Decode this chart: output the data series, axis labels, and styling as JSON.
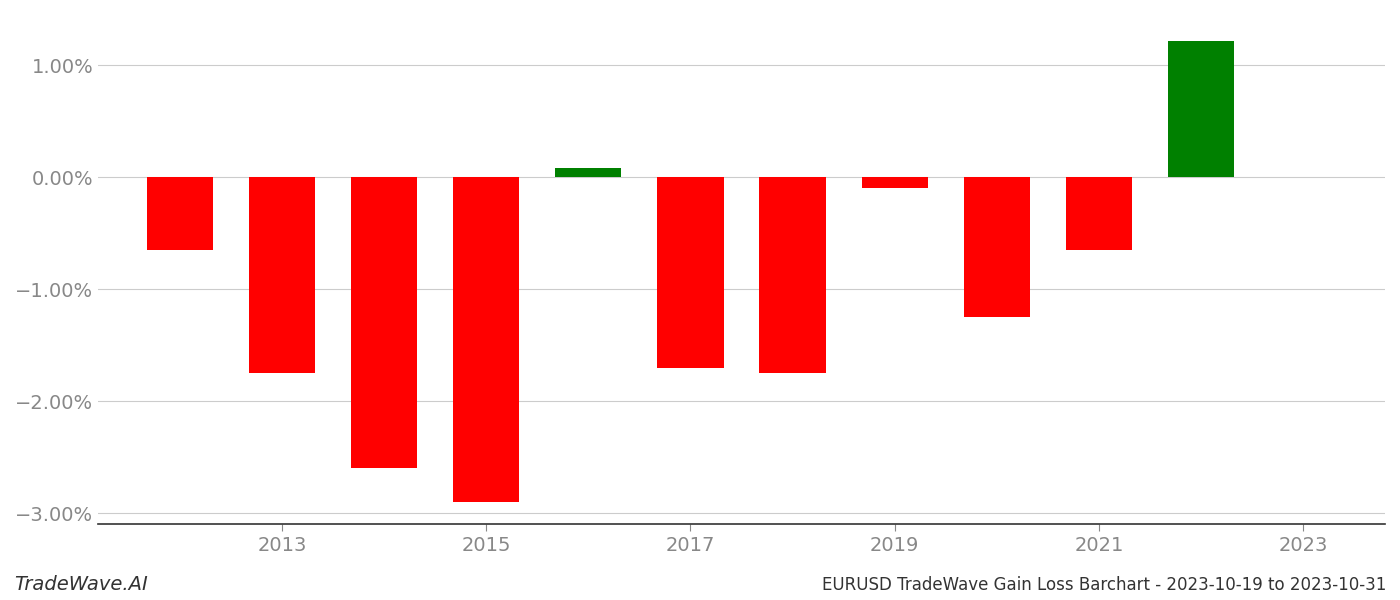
{
  "years": [
    2012,
    2013,
    2014,
    2015,
    2016,
    2017,
    2018,
    2019,
    2020,
    2021,
    2022
  ],
  "values": [
    -0.0065,
    -0.0175,
    -0.026,
    -0.029,
    0.0008,
    -0.017,
    -0.0175,
    -0.001,
    -0.0125,
    -0.0065,
    0.0122
  ],
  "colors": [
    "#ff0000",
    "#ff0000",
    "#ff0000",
    "#ff0000",
    "#008000",
    "#ff0000",
    "#ff0000",
    "#ff0000",
    "#ff0000",
    "#ff0000",
    "#008000"
  ],
  "title": "EURUSD TradeWave Gain Loss Barchart - 2023-10-19 to 2023-10-31",
  "watermark": "TradeWave.AI",
  "ylim_min": -0.031,
  "ylim_max": 0.0145,
  "xticks": [
    2013,
    2015,
    2017,
    2019,
    2021,
    2023
  ],
  "xtick_labels": [
    "2013",
    "2015",
    "2017",
    "2019",
    "2021",
    "2023"
  ],
  "xlim_min": 2011.2,
  "xlim_max": 2023.8,
  "background_color": "#ffffff",
  "grid_color": "#cccccc",
  "tick_color": "#888888",
  "bar_width": 0.65,
  "title_fontsize": 12,
  "tick_fontsize": 14,
  "watermark_fontsize": 14,
  "ytick_step": 0.01
}
